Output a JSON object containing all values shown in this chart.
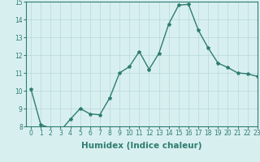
{
  "x": [
    0,
    1,
    2,
    3,
    4,
    5,
    6,
    7,
    8,
    9,
    10,
    11,
    12,
    13,
    14,
    15,
    16,
    17,
    18,
    19,
    20,
    21,
    22,
    23
  ],
  "y": [
    10.1,
    8.1,
    7.9,
    7.75,
    8.4,
    9.0,
    8.7,
    8.65,
    9.6,
    11.0,
    11.35,
    12.2,
    11.2,
    12.1,
    13.75,
    14.8,
    14.85,
    13.4,
    12.4,
    11.55,
    11.3,
    11.0,
    10.95,
    10.8
  ],
  "line_color": "#2e7d6e",
  "marker": "*",
  "marker_size": 3,
  "bg_color": "#d8eff0",
  "grid_color": "#b8d8d8",
  "xlabel": "Humidex (Indice chaleur)",
  "ylim": [
    8,
    15
  ],
  "xlim": [
    -0.5,
    23
  ],
  "yticks": [
    8,
    9,
    10,
    11,
    12,
    13,
    14,
    15
  ],
  "xticks": [
    0,
    1,
    2,
    3,
    4,
    5,
    6,
    7,
    8,
    9,
    10,
    11,
    12,
    13,
    14,
    15,
    16,
    17,
    18,
    19,
    20,
    21,
    22,
    23
  ],
  "tick_fontsize": 5.5,
  "xlabel_fontsize": 7.5,
  "linewidth": 1.0
}
